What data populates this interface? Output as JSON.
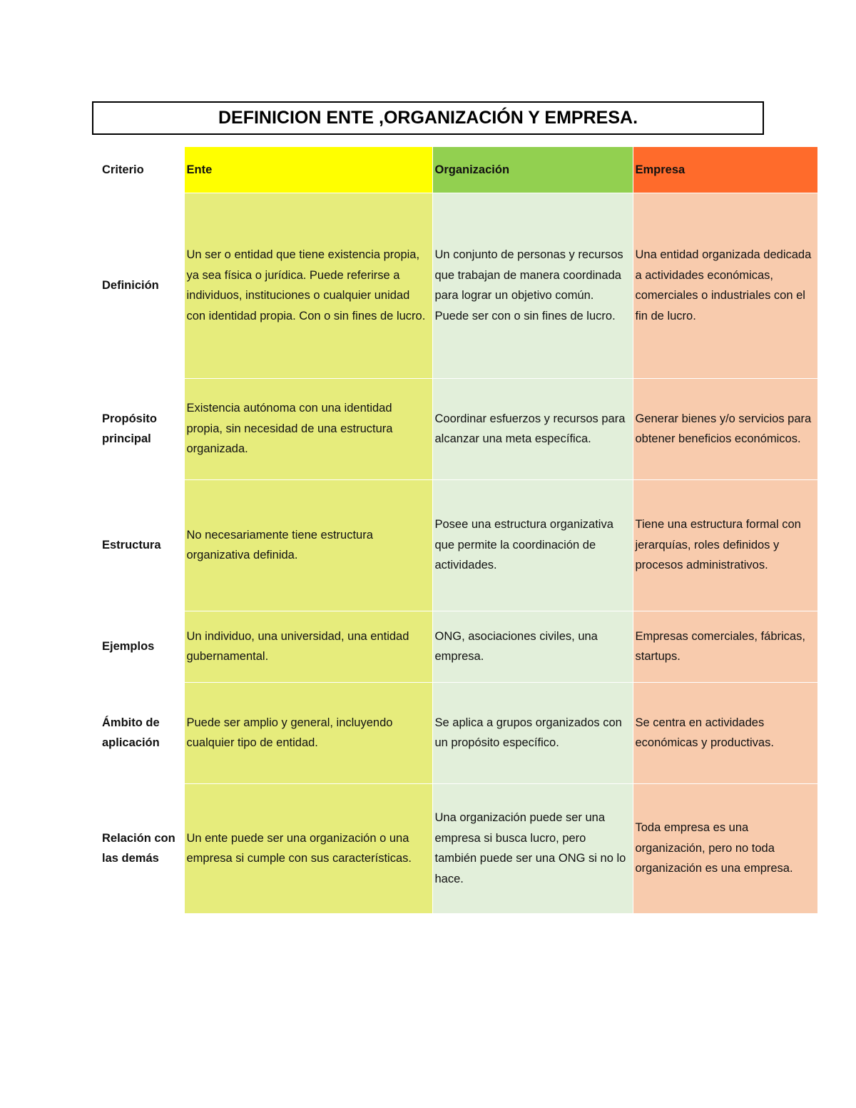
{
  "title": "DEFINICION ENTE ,ORGANIZACIÓN Y EMPRESA.",
  "table": {
    "header": [
      "Criterio",
      "Ente",
      "Organización",
      "Empresa"
    ],
    "rows": [
      [
        "Definición",
        "Un ser o entidad que tiene existencia propia, ya sea física o jurídica. Puede referirse a individuos, instituciones o cualquier unidad con identidad propia. Con o sin fines de lucro.",
        "Un conjunto de personas y recursos que trabajan de manera coordinada para lograr un objetivo común. Puede ser con o sin fines de lucro.",
        "Una entidad organizada dedicada a actividades económicas, comerciales o industriales con el fin de lucro."
      ],
      [
        "Propósito principal",
        "Existencia autónoma con una identidad propia, sin necesidad de una estructura organizada.",
        "Coordinar esfuerzos y recursos para alcanzar una meta específica.",
        "Generar bienes y/o servicios para obtener beneficios económicos."
      ],
      [
        "Estructura",
        "No necesariamente tiene estructura organizativa definida.",
        "Posee una estructura organizativa que permite la coordinación de actividades.",
        "Tiene una estructura formal con jerarquías, roles definidos y procesos administrativos."
      ],
      [
        "Ejemplos",
        "Un individuo, una universidad, una entidad gubernamental.",
        "ONG, asociaciones civiles, una empresa.",
        "Empresas comerciales, fábricas, startups."
      ],
      [
        "Ámbito de aplicación",
        "Puede ser amplio y general, incluyendo cualquier tipo de entidad.",
        "Se aplica a grupos organizados con un propósito específico.",
        "Se centra en actividades económicas y productivas."
      ],
      [
        "Relación con las demás",
        "Un ente puede ser una organización o una empresa si cumple con sus características.",
        "Una organización puede ser una empresa si busca lucro, pero también puede ser una ONG si no lo hace.",
        "Toda empresa es una organización, pero no toda organización es una empresa."
      ]
    ]
  }
}
